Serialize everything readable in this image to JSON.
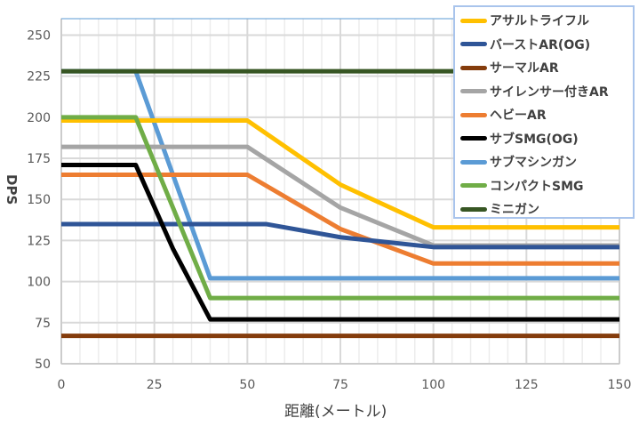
{
  "chart_data": {
    "type": "line",
    "title": "",
    "xlabel": "距離(メートル)",
    "ylabel": "DPS",
    "xlim": [
      0,
      150
    ],
    "ylim": [
      50,
      260
    ],
    "xticks": [
      0,
      25,
      50,
      75,
      100,
      125,
      150
    ],
    "yticks": [
      50,
      75,
      100,
      125,
      150,
      175,
      200,
      225,
      250
    ],
    "grid": true,
    "legend_position": "top-right",
    "series": [
      {
        "name": "アサルトライフル",
        "color": "#ffc000",
        "x": [
          0,
          50,
          75,
          100,
          150
        ],
        "y": [
          198,
          198,
          159,
          133,
          133
        ]
      },
      {
        "name": "バーストAR(OG)",
        "color": "#2f5597",
        "x": [
          0,
          55,
          75,
          100,
          150
        ],
        "y": [
          135,
          135,
          127,
          121,
          121
        ]
      },
      {
        "name": "サーマルAR",
        "color": "#843c0c",
        "x": [
          0,
          150
        ],
        "y": [
          67,
          67
        ]
      },
      {
        "name": "サイレンサー付きAR",
        "color": "#a5a5a5",
        "x": [
          0,
          50,
          75,
          100,
          150
        ],
        "y": [
          182,
          182,
          145,
          122,
          122
        ]
      },
      {
        "name": "ヘビーAR",
        "color": "#ed7d31",
        "x": [
          0,
          50,
          75,
          100,
          150
        ],
        "y": [
          165,
          165,
          132,
          111,
          111
        ]
      },
      {
        "name": "サブSMG(OG)",
        "color": "#000000",
        "x": [
          0,
          20,
          30,
          40,
          150
        ],
        "y": [
          171,
          171,
          120,
          77,
          77
        ]
      },
      {
        "name": "サブマシンガン",
        "color": "#5b9bd5",
        "x": [
          0,
          20,
          40,
          150
        ],
        "y": [
          228,
          228,
          102,
          102
        ]
      },
      {
        "name": "コンパクトSMG",
        "color": "#70ad47",
        "x": [
          0,
          20,
          40,
          150
        ],
        "y": [
          200,
          200,
          90,
          90
        ]
      },
      {
        "name": "ミニガン",
        "color": "#375623",
        "x": [
          0,
          150
        ],
        "y": [
          228,
          228
        ]
      }
    ]
  }
}
